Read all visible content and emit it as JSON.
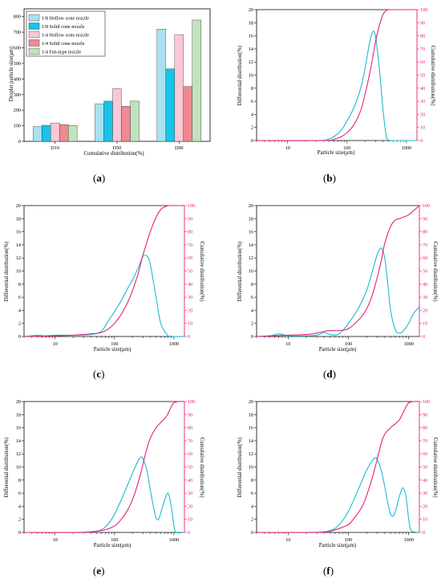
{
  "colors": {
    "differential": "#1fb9cf",
    "cumulative": "#e8207a",
    "bar_series": [
      "#a8e2f2",
      "#19c4ea",
      "#f9c8d4",
      "#ef8a92",
      "#c0e3bf"
    ]
  },
  "panels": [
    {
      "letter": "a"
    },
    {
      "letter": "b"
    },
    {
      "letter": "c"
    },
    {
      "letter": "d"
    },
    {
      "letter": "e"
    },
    {
      "letter": "f"
    }
  ],
  "chart_data": [
    {
      "type": "bar",
      "panel": "a",
      "categories": [
        "D10",
        "D50",
        "D90"
      ],
      "series": [
        {
          "name": "1/8 Hollow cone nozzle",
          "values": [
            95,
            240,
            720
          ]
        },
        {
          "name": "1/8 Solid cone nozzle",
          "values": [
            103,
            258,
            465
          ]
        },
        {
          "name": "1/4 Hollow cone nozzle",
          "values": [
            118,
            338,
            685
          ]
        },
        {
          "name": "1/4 Solid cone nozzle",
          "values": [
            108,
            225,
            352
          ]
        },
        {
          "name": "1/4 Fan-type nozzle",
          "values": [
            102,
            258,
            778
          ]
        }
      ],
      "xlabel": "Cumulative distribution(%)",
      "ylabel": "Droplet particle size(μm)",
      "ylim": [
        0,
        850
      ],
      "yticks": [
        "0",
        "100",
        "200",
        "300",
        "400",
        "500",
        "600",
        "700",
        "800"
      ],
      "legend": "top-left",
      "grid": false
    },
    {
      "type": "line",
      "panel": "b",
      "xscale": "log",
      "xlim": [
        3,
        1500
      ],
      "xticks": [
        "10",
        "100",
        "1000"
      ],
      "ylim_left": [
        0,
        20
      ],
      "ylim_right": [
        0,
        100
      ],
      "yticks_left": [
        "0",
        "2",
        "4",
        "6",
        "8",
        "10",
        "12",
        "14",
        "16",
        "18",
        "20"
      ],
      "yticks_right": [
        "0",
        "10",
        "20",
        "30",
        "40",
        "50",
        "60",
        "70",
        "80",
        "90",
        "100"
      ],
      "xlabel": "Particle size(μm)",
      "ylabel_left": "Differential distribution(%)",
      "ylabel_right": "Cumulative distribution(%)",
      "series": [
        {
          "axis": "left",
          "x": [
            3,
            30,
            45,
            60,
            80,
            100,
            130,
            170,
            200,
            240,
            270,
            300,
            350,
            400,
            450,
            500,
            600,
            1500
          ],
          "y": [
            0,
            0,
            0.1,
            0.6,
            1.6,
            3.0,
            5.0,
            8.0,
            11.0,
            15.0,
            16.6,
            16.0,
            11.0,
            5.0,
            1.0,
            0,
            0,
            0
          ]
        },
        {
          "axis": "right",
          "x": [
            3,
            40,
            60,
            80,
            100,
            130,
            170,
            200,
            250,
            300,
            350,
            400,
            450,
            500,
            600,
            1500
          ],
          "y": [
            0,
            0,
            1,
            3,
            6,
            12,
            23,
            35,
            55,
            75,
            88,
            96,
            99,
            100,
            100,
            100
          ]
        }
      ]
    },
    {
      "type": "line",
      "panel": "c",
      "xscale": "log",
      "xlim": [
        3,
        1500
      ],
      "xticks": [
        "10",
        "100",
        "1000"
      ],
      "ylim_left": [
        0,
        20
      ],
      "ylim_right": [
        0,
        100
      ],
      "yticks_left": [
        "0",
        "2",
        "4",
        "6",
        "8",
        "10",
        "12",
        "14",
        "16",
        "18",
        "20"
      ],
      "yticks_right": [
        "0",
        "10",
        "20",
        "30",
        "40",
        "50",
        "60",
        "70",
        "80",
        "90",
        "100"
      ],
      "xlabel": "Particle size(μm)",
      "ylabel_left": "Differential distribution(%)",
      "ylabel_right": "Cumulative distribution(%)",
      "series": [
        {
          "axis": "left",
          "x": [
            3,
            4,
            5,
            7,
            10,
            20,
            40,
            60,
            80,
            100,
            130,
            170,
            200,
            250,
            300,
            350,
            400,
            500,
            600,
            800,
            1000,
            1500
          ],
          "y": [
            0,
            0.1,
            0.2,
            0.1,
            0.2,
            0.2,
            0.3,
            0.8,
            2.5,
            3.8,
            5.5,
            7.5,
            8.6,
            10.5,
            12.2,
            12.3,
            11.0,
            6.0,
            2.0,
            0.1,
            0,
            0
          ]
        },
        {
          "axis": "right",
          "x": [
            3,
            10,
            20,
            40,
            60,
            80,
            100,
            130,
            170,
            200,
            250,
            300,
            400,
            500,
            600,
            700,
            800,
            1000,
            1500
          ],
          "y": [
            0,
            0.5,
            1,
            2,
            3,
            6,
            10,
            17,
            27,
            35,
            48,
            62,
            80,
            91,
            97,
            99,
            100,
            100,
            100
          ]
        }
      ]
    },
    {
      "type": "line",
      "panel": "d",
      "xscale": "log",
      "xlim": [
        3,
        1500
      ],
      "xticks": [
        "10",
        "100",
        "1000"
      ],
      "ylim_left": [
        0,
        20
      ],
      "ylim_right": [
        0,
        100
      ],
      "yticks_left": [
        "0",
        "2",
        "4",
        "6",
        "8",
        "10",
        "12",
        "14",
        "16",
        "18",
        "20"
      ],
      "yticks_right": [
        "0",
        "10",
        "20",
        "30",
        "40",
        "50",
        "60",
        "70",
        "80",
        "90",
        "100"
      ],
      "xlabel": "Particle size(μm)",
      "ylabel_left": "Differential distribution(%)",
      "ylabel_right": "Cumulative distribution(%)",
      "series": [
        {
          "axis": "left",
          "x": [
            3,
            5,
            7,
            9,
            12,
            20,
            30,
            40,
            50,
            70,
            100,
            150,
            200,
            250,
            300,
            350,
            400,
            450,
            500,
            600,
            700,
            800,
            1000,
            1200,
            1500
          ],
          "y": [
            0,
            0.1,
            0.4,
            0.2,
            0.1,
            0.1,
            0.2,
            0.6,
            0.3,
            0.4,
            2.0,
            4.5,
            7.0,
            10.0,
            12.5,
            13.5,
            12.0,
            8.0,
            4.0,
            1.0,
            0.5,
            0.8,
            2.0,
            3.5,
            4.5
          ]
        },
        {
          "axis": "right",
          "x": [
            3,
            10,
            20,
            30,
            40,
            50,
            70,
            100,
            150,
            200,
            250,
            300,
            350,
            400,
            500,
            600,
            700,
            800,
            1000,
            1200,
            1500
          ],
          "y": [
            0,
            1,
            1.5,
            2.5,
            4,
            4.5,
            4.5,
            6,
            13,
            21,
            32,
            45,
            58,
            71,
            84,
            89,
            90,
            91,
            93,
            96,
            100
          ]
        }
      ]
    },
    {
      "type": "line",
      "panel": "e",
      "xscale": "log",
      "xlim": [
        3,
        1500
      ],
      "xticks": [
        "10",
        "100",
        "1000"
      ],
      "ylim_left": [
        0,
        20
      ],
      "ylim_right": [
        0,
        100
      ],
      "yticks_left": [
        "0",
        "2",
        "4",
        "6",
        "8",
        "10",
        "12",
        "14",
        "16",
        "18",
        "20"
      ],
      "yticks_right": [
        "0",
        "10",
        "20",
        "30",
        "40",
        "50",
        "60",
        "70",
        "80",
        "90",
        "100"
      ],
      "xlabel": "Particle size(μm)",
      "ylabel_left": "Differential distribution(%)",
      "ylabel_right": "Cumulative distribution(%)",
      "series": [
        {
          "axis": "left",
          "x": [
            3,
            20,
            40,
            60,
            80,
            100,
            130,
            170,
            200,
            250,
            280,
            300,
            350,
            400,
            450,
            500,
            550,
            600,
            700,
            800,
            900,
            1000,
            1100,
            1500
          ],
          "y": [
            0,
            0,
            0.1,
            0.4,
            1.4,
            2.8,
            5.0,
            7.5,
            9.0,
            11.0,
            11.5,
            11.3,
            9.5,
            6.5,
            4.0,
            2.2,
            2.0,
            3.0,
            5.0,
            6.0,
            4.0,
            1.0,
            0,
            0
          ]
        },
        {
          "axis": "right",
          "x": [
            3,
            30,
            50,
            70,
            100,
            130,
            170,
            200,
            250,
            300,
            350,
            400,
            500,
            600,
            700,
            800,
            900,
            1000,
            1200,
            1500
          ],
          "y": [
            0,
            0,
            1,
            2,
            5,
            10,
            18,
            25,
            38,
            52,
            64,
            72,
            80,
            84,
            87,
            91,
            96,
            99,
            100,
            100
          ]
        }
      ]
    },
    {
      "type": "line",
      "panel": "f",
      "xscale": "log",
      "xlim": [
        3,
        1500
      ],
      "xticks": [
        "10",
        "100",
        "1000"
      ],
      "ylim_left": [
        0,
        20
      ],
      "ylim_right": [
        0,
        100
      ],
      "yticks_left": [
        "0",
        "2",
        "4",
        "6",
        "8",
        "10",
        "12",
        "14",
        "16",
        "18",
        "20"
      ],
      "yticks_right": [
        "0",
        "10",
        "20",
        "30",
        "40",
        "50",
        "60",
        "70",
        "80",
        "90",
        "100"
      ],
      "xlabel": "Particle size(μm)",
      "ylabel_left": "Differential distribution(%)",
      "ylabel_right": "Cumulative distribution(%)",
      "series": [
        {
          "axis": "left",
          "x": [
            3,
            20,
            40,
            60,
            80,
            100,
            130,
            170,
            200,
            250,
            280,
            300,
            350,
            400,
            450,
            500,
            550,
            600,
            700,
            800,
            900,
            1000,
            1100,
            1500
          ],
          "y": [
            0,
            0,
            0.1,
            0.6,
            1.8,
            3.2,
            5.5,
            8.0,
            9.5,
            11.0,
            11.4,
            11.2,
            9.5,
            7.0,
            4.5,
            2.8,
            2.5,
            3.2,
            5.5,
            6.8,
            5.5,
            2.0,
            0.3,
            0
          ]
        },
        {
          "axis": "right",
          "x": [
            3,
            30,
            50,
            70,
            100,
            130,
            170,
            200,
            250,
            300,
            350,
            400,
            500,
            600,
            700,
            800,
            900,
            1000,
            1200,
            1500
          ],
          "y": [
            0,
            0,
            1,
            3,
            6,
            12,
            20,
            28,
            42,
            56,
            68,
            75,
            80,
            83,
            86,
            91,
            96,
            99,
            100,
            100
          ]
        }
      ]
    }
  ]
}
